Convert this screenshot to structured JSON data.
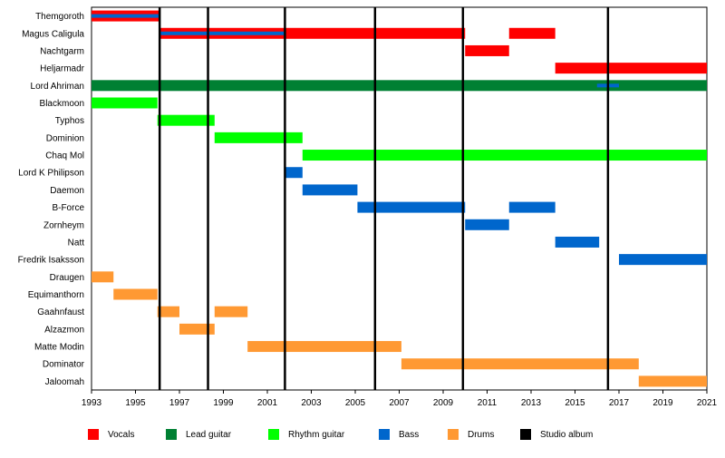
{
  "chart_data": {
    "type": "bar",
    "subtype": "timeline",
    "title": "",
    "xlim": [
      1993,
      2021
    ],
    "x_ticks": [
      1993,
      1995,
      1997,
      1999,
      2001,
      2003,
      2005,
      2007,
      2009,
      2011,
      2013,
      2015,
      2017,
      2019,
      2021
    ],
    "grid": false,
    "legend_position": "bottom",
    "roles": [
      {
        "key": "vocals",
        "label": "Vocals",
        "color": "#ff0000"
      },
      {
        "key": "lead",
        "label": "Lead guitar",
        "color": "#008033"
      },
      {
        "key": "rhythm",
        "label": "Rhythm guitar",
        "color": "#00ff00"
      },
      {
        "key": "bass",
        "label": "Bass",
        "color": "#0066cc"
      },
      {
        "key": "drums",
        "label": "Drums",
        "color": "#ff9933"
      },
      {
        "key": "album",
        "label": "Studio album",
        "color": "#000000"
      }
    ],
    "members": [
      {
        "name": "Themgoroth",
        "bars": [
          {
            "role": "vocals",
            "start": 1993,
            "end": 1996.1
          }
        ],
        "overlays": [
          {
            "role": "bass",
            "start": 1993,
            "end": 1996.1
          }
        ]
      },
      {
        "name": "Magus Caligula",
        "bars": [
          {
            "role": "vocals",
            "start": 1996.1,
            "end": 2010.0
          },
          {
            "role": "vocals",
            "start": 2012.0,
            "end": 2014.1
          }
        ],
        "overlays": [
          {
            "role": "bass",
            "start": 1996.1,
            "end": 2001.8
          }
        ]
      },
      {
        "name": "Nachtgarm",
        "bars": [
          {
            "role": "vocals",
            "start": 2010.0,
            "end": 2012.0
          }
        ],
        "overlays": []
      },
      {
        "name": "Heljarmadr",
        "bars": [
          {
            "role": "vocals",
            "start": 2014.1,
            "end": 2021.0
          }
        ],
        "overlays": []
      },
      {
        "name": "Lord Ahriman",
        "bars": [
          {
            "role": "lead",
            "start": 1993,
            "end": 2021.0
          }
        ],
        "overlays": [
          {
            "role": "bass",
            "start": 2016.0,
            "end": 2017.0
          }
        ]
      },
      {
        "name": "Blackmoon",
        "bars": [
          {
            "role": "rhythm",
            "start": 1993,
            "end": 1996.0
          }
        ],
        "overlays": []
      },
      {
        "name": "Typhos",
        "bars": [
          {
            "role": "rhythm",
            "start": 1996.0,
            "end": 1998.6
          }
        ],
        "overlays": []
      },
      {
        "name": "Dominion",
        "bars": [
          {
            "role": "rhythm",
            "start": 1998.6,
            "end": 2002.6
          }
        ],
        "overlays": []
      },
      {
        "name": "Chaq Mol",
        "bars": [
          {
            "role": "rhythm",
            "start": 2002.6,
            "end": 2021.0
          }
        ],
        "overlays": []
      },
      {
        "name": "Lord K Philipson",
        "bars": [
          {
            "role": "bass",
            "start": 2001.8,
            "end": 2002.6
          }
        ],
        "overlays": []
      },
      {
        "name": "Daemon",
        "bars": [
          {
            "role": "bass",
            "start": 2002.6,
            "end": 2005.1
          }
        ],
        "overlays": []
      },
      {
        "name": "B-Force",
        "bars": [
          {
            "role": "bass",
            "start": 2005.1,
            "end": 2010.0
          },
          {
            "role": "bass",
            "start": 2012.0,
            "end": 2014.1
          }
        ],
        "overlays": []
      },
      {
        "name": "Zornheym",
        "bars": [
          {
            "role": "bass",
            "start": 2010.0,
            "end": 2012.0
          }
        ],
        "overlays": []
      },
      {
        "name": "Natt",
        "bars": [
          {
            "role": "bass",
            "start": 2014.1,
            "end": 2016.1
          }
        ],
        "overlays": []
      },
      {
        "name": "Fredrik Isaksson",
        "bars": [
          {
            "role": "bass",
            "start": 2017.0,
            "end": 2021.0
          }
        ],
        "overlays": []
      },
      {
        "name": "Draugen",
        "bars": [
          {
            "role": "drums",
            "start": 1993,
            "end": 1994.0
          }
        ],
        "overlays": []
      },
      {
        "name": "Equimanthorn",
        "bars": [
          {
            "role": "drums",
            "start": 1994.0,
            "end": 1996.0
          }
        ],
        "overlays": []
      },
      {
        "name": "Gaahnfaust",
        "bars": [
          {
            "role": "drums",
            "start": 1996.0,
            "end": 1997.0
          },
          {
            "role": "drums",
            "start": 1998.6,
            "end": 2000.1
          }
        ],
        "overlays": []
      },
      {
        "name": "Alzazmon",
        "bars": [
          {
            "role": "drums",
            "start": 1997.0,
            "end": 1998.6
          }
        ],
        "overlays": []
      },
      {
        "name": "Matte Modin",
        "bars": [
          {
            "role": "drums",
            "start": 2000.1,
            "end": 2007.1
          }
        ],
        "overlays": []
      },
      {
        "name": "Dominator",
        "bars": [
          {
            "role": "drums",
            "start": 2007.1,
            "end": 2017.9
          }
        ],
        "overlays": []
      },
      {
        "name": "Jaloomah",
        "bars": [
          {
            "role": "drums",
            "start": 2017.9,
            "end": 2021.0
          }
        ],
        "overlays": []
      }
    ],
    "albums": [
      1996.1,
      1998.3,
      2001.8,
      2005.9,
      2009.9,
      2016.5
    ]
  }
}
